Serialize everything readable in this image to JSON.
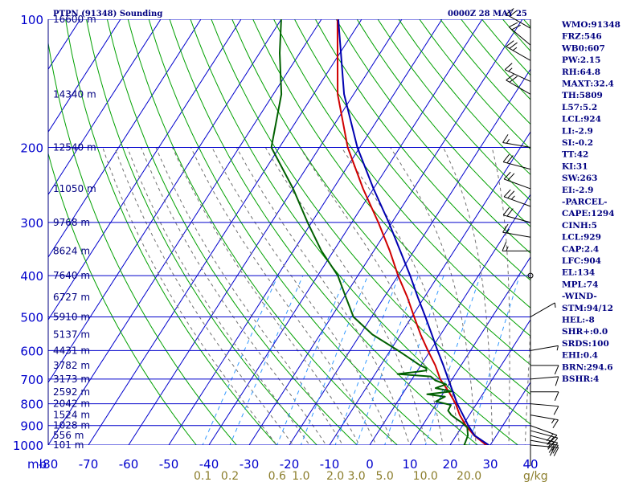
{
  "chart_data": {
    "type": "skew-t",
    "title": "PTPN (91348) Sounding",
    "valid_time": "0000Z 28 MAY 25",
    "pressure_axis_label": "mb",
    "pressure_levels": [
      100,
      200,
      300,
      400,
      500,
      600,
      700,
      800,
      900,
      1000
    ],
    "temperature_ticks": [
      -80,
      -70,
      -60,
      -50,
      -40,
      -30,
      -20,
      -10,
      0,
      10,
      20,
      30,
      40
    ],
    "mixing_ratio_labels": [
      "0.1",
      "0.2",
      "0.6",
      "1.0",
      "2.0",
      "3.0",
      "5.0",
      "10.0",
      "20.0"
    ],
    "mixing_ratio_unit": "g/kg",
    "heights": [
      {
        "p": 100,
        "label": "16600 m"
      },
      {
        "p": 150,
        "label": "14340 m"
      },
      {
        "p": 200,
        "label": "12540 m"
      },
      {
        "p": 250,
        "label": "11050 m"
      },
      {
        "p": 300,
        "label": "9768 m"
      },
      {
        "p": 350,
        "label": "8624 m"
      },
      {
        "p": 400,
        "label": "7640 m"
      },
      {
        "p": 450,
        "label": "6727 m"
      },
      {
        "p": 500,
        "label": "5910 m"
      },
      {
        "p": 550,
        "label": "5137 m"
      },
      {
        "p": 600,
        "label": "4431 m"
      },
      {
        "p": 650,
        "label": "3782 m"
      },
      {
        "p": 700,
        "label": "3173 m"
      },
      {
        "p": 750,
        "label": "2592 m"
      },
      {
        "p": 800,
        "label": "2042 m"
      },
      {
        "p": 850,
        "label": "1524 m"
      },
      {
        "p": 900,
        "label": "1028 m"
      },
      {
        "p": 950,
        "label": "556 m"
      },
      {
        "p": 1000,
        "label": "101 m"
      }
    ],
    "series": [
      {
        "color": "#d00000",
        "points": [
          [
            1008,
            30.6
          ],
          [
            1000,
            29
          ],
          [
            950,
            24.5
          ],
          [
            900,
            20.8
          ],
          [
            850,
            17.6
          ],
          [
            800,
            14.8
          ],
          [
            750,
            11.2
          ],
          [
            700,
            7
          ],
          [
            650,
            3.6
          ],
          [
            600,
            -0.6
          ],
          [
            550,
            -5
          ],
          [
            500,
            -9.4
          ],
          [
            450,
            -14.2
          ],
          [
            400,
            -20
          ],
          [
            350,
            -26
          ],
          [
            300,
            -33.4
          ],
          [
            250,
            -42.6
          ],
          [
            200,
            -53
          ],
          [
            150,
            -64
          ],
          [
            100,
            -76
          ]
        ]
      },
      {
        "color": "#006000",
        "points": [
          [
            1008,
            27.4
          ],
          [
            1000,
            23.5
          ],
          [
            990,
            23.4
          ],
          [
            950,
            22.9
          ],
          [
            910,
            21.5
          ],
          [
            885,
            19.3
          ],
          [
            870,
            17.6
          ],
          [
            850,
            15.5
          ],
          [
            830,
            14
          ],
          [
            805,
            13.8
          ],
          [
            790,
            9.5
          ],
          [
            770,
            11
          ],
          [
            760,
            6.2
          ],
          [
            748,
            11.8
          ],
          [
            735,
            7.3
          ],
          [
            720,
            9.3
          ],
          [
            705,
            6
          ],
          [
            690,
            4.2
          ],
          [
            681,
            -4.4
          ],
          [
            674,
            -0.6
          ],
          [
            668,
            2.2
          ],
          [
            660,
            1.8
          ],
          [
            650,
            -0.2
          ],
          [
            600,
            -8
          ],
          [
            550,
            -17
          ],
          [
            500,
            -24.5
          ],
          [
            450,
            -29.5
          ],
          [
            400,
            -35
          ],
          [
            350,
            -43
          ],
          [
            300,
            -51
          ],
          [
            250,
            -60
          ],
          [
            200,
            -72
          ],
          [
            150,
            -78
          ],
          [
            120,
            -85
          ],
          [
            100,
            -90
          ]
        ]
      },
      {
        "color": "#0000b0",
        "points": [
          [
            1008,
            30.4
          ],
          [
            1000,
            29.6
          ],
          [
            950,
            24.6
          ],
          [
            900,
            21.4
          ],
          [
            850,
            18.4
          ],
          [
            800,
            15.2
          ],
          [
            750,
            12.2
          ],
          [
            700,
            9
          ],
          [
            650,
            5.6
          ],
          [
            600,
            1.8
          ],
          [
            550,
            -2.2
          ],
          [
            500,
            -6.6
          ],
          [
            450,
            -11.6
          ],
          [
            400,
            -17
          ],
          [
            350,
            -23.4
          ],
          [
            300,
            -30.8
          ],
          [
            250,
            -40
          ],
          [
            200,
            -50.6
          ],
          [
            150,
            -62.4
          ],
          [
            100,
            -75.8
          ]
        ]
      }
    ],
    "wind_barbs": [
      {
        "p": 1000,
        "dir": 95,
        "spd": 20
      },
      {
        "p": 975,
        "dir": 100,
        "spd": 25
      },
      {
        "p": 950,
        "dir": 105,
        "spd": 25
      },
      {
        "p": 925,
        "dir": 105,
        "spd": 20
      },
      {
        "p": 900,
        "dir": 110,
        "spd": 20
      },
      {
        "p": 850,
        "dir": 100,
        "spd": 15
      },
      {
        "p": 800,
        "dir": 95,
        "spd": 10
      },
      {
        "p": 750,
        "dir": 90,
        "spd": 10
      },
      {
        "p": 700,
        "dir": 85,
        "spd": 10
      },
      {
        "p": 650,
        "dir": 90,
        "spd": 10
      },
      {
        "p": 600,
        "dir": 80,
        "spd": 5
      },
      {
        "p": 500,
        "dir": 60,
        "spd": 5
      },
      {
        "p": 400,
        "dir": 0,
        "spd": 0
      },
      {
        "p": 350,
        "dir": 270,
        "spd": 15
      },
      {
        "p": 325,
        "dir": 280,
        "spd": 15
      },
      {
        "p": 300,
        "dir": 285,
        "spd": 20
      },
      {
        "p": 275,
        "dir": 290,
        "spd": 25
      },
      {
        "p": 250,
        "dir": 290,
        "spd": 20
      },
      {
        "p": 225,
        "dir": 285,
        "spd": 20
      },
      {
        "p": 200,
        "dir": 280,
        "spd": 15
      },
      {
        "p": 150,
        "dir": 300,
        "spd": 20
      },
      {
        "p": 140,
        "dir": 295,
        "spd": 15
      },
      {
        "p": 125,
        "dir": 300,
        "spd": 25
      },
      {
        "p": 115,
        "dir": 310,
        "spd": 20
      },
      {
        "p": 105,
        "dir": 300,
        "spd": 20
      }
    ]
  },
  "stats": [
    "WMO:91348",
    "FRZ:546",
    "WB0:607",
    "PW:2.15",
    "RH:64.8",
    "MAXT:32.4",
    "TH:5809",
    "L57:5.2",
    "LCL:924",
    "LI:-2.9",
    "SI:-0.2",
    "TT:42",
    "KI:31",
    "SW:263",
    "EI:-2.9",
    "-PARCEL-",
    "CAPE:1294",
    "CINH:5",
    "LCL:929",
    "CAP:2.4",
    "LFC:904",
    "EL:134",
    "MPL:74",
    "-WIND-",
    "STM:94/12",
    "HEL:-8",
    "SHR+:0.0",
    "SRDS:100",
    "EHI:0.4",
    "BRN:294.6",
    "BSHR:4"
  ],
  "colors": {
    "frame": "#000080",
    "isobar": "#0000cc",
    "isotherm": "#0000cc",
    "dry_adiabat": "#00a000",
    "moist_adiabat": "#707070",
    "mixing_ratio": "#3399ff",
    "mixing_label": "#8b7d2b",
    "text": "#000080"
  }
}
